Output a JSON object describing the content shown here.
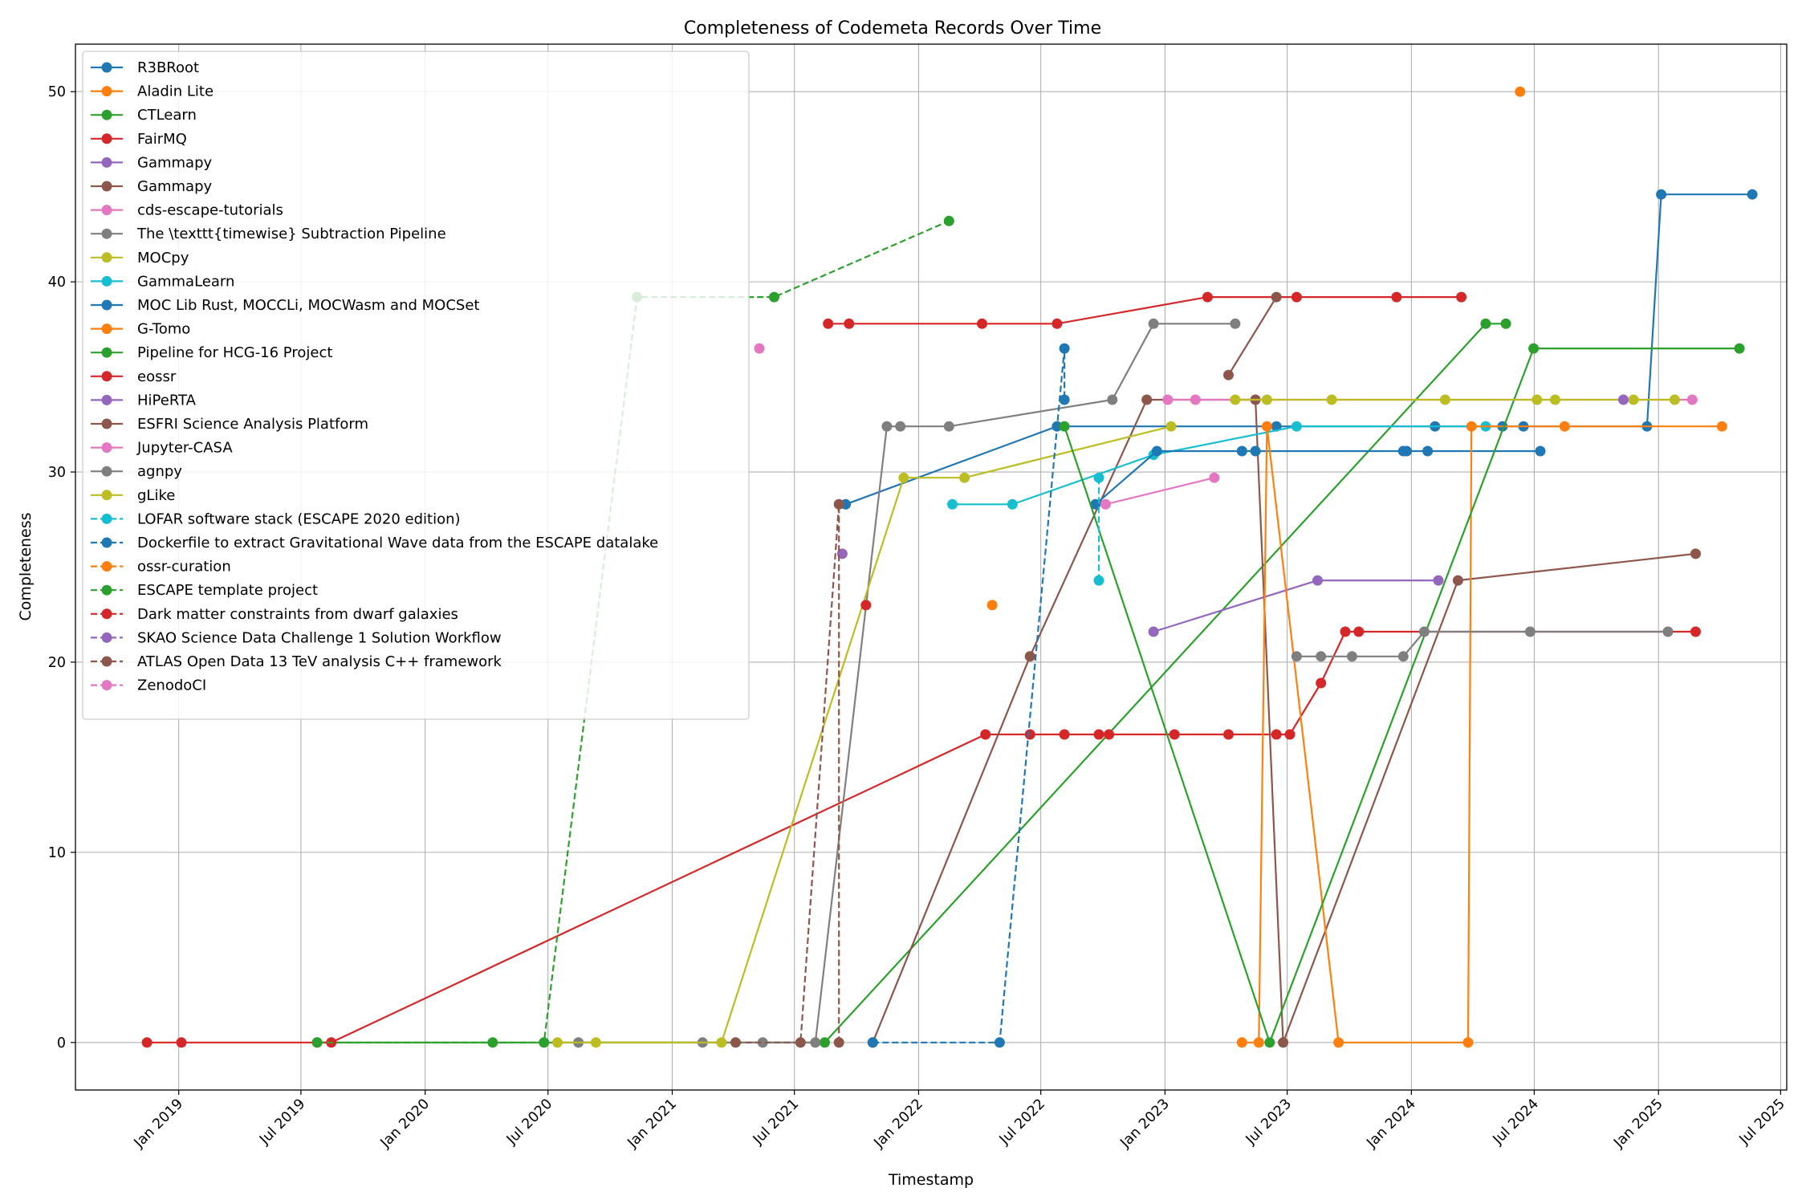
{
  "chart_data": {
    "type": "line",
    "title": "Completeness of Codemeta Records Over Time",
    "xlabel": "Timestamp",
    "ylabel": "Completeness",
    "x_axis": "date",
    "xlim": [
      "2018-08-01",
      "2025-07-10"
    ],
    "ylim": [
      -2.5,
      52.5
    ],
    "x_ticks": [
      {
        "value": "2019-01-01",
        "label": "Jan 2019"
      },
      {
        "value": "2019-07-01",
        "label": "Jul 2019"
      },
      {
        "value": "2020-01-01",
        "label": "Jan 2020"
      },
      {
        "value": "2020-07-01",
        "label": "Jul 2020"
      },
      {
        "value": "2021-01-01",
        "label": "Jan 2021"
      },
      {
        "value": "2021-07-01",
        "label": "Jul 2021"
      },
      {
        "value": "2022-01-01",
        "label": "Jan 2022"
      },
      {
        "value": "2022-07-01",
        "label": "Jul 2022"
      },
      {
        "value": "2023-01-01",
        "label": "Jan 2023"
      },
      {
        "value": "2023-07-01",
        "label": "Jul 2023"
      },
      {
        "value": "2024-01-01",
        "label": "Jan 2024"
      },
      {
        "value": "2024-07-01",
        "label": "Jul 2024"
      },
      {
        "value": "2025-01-01",
        "label": "Jan 2025"
      },
      {
        "value": "2025-07-01",
        "label": "Jul 2025"
      }
    ],
    "y_ticks": [
      {
        "value": 0,
        "label": "0"
      },
      {
        "value": 10,
        "label": "10"
      },
      {
        "value": 20,
        "label": "20"
      },
      {
        "value": 30,
        "label": "30"
      },
      {
        "value": 40,
        "label": "40"
      },
      {
        "value": 50,
        "label": "50"
      }
    ],
    "grid": true,
    "legend_position": "upper-left",
    "series": [
      {
        "name": "R3BRoot",
        "color": "#1f77b4",
        "dash": false,
        "points": [
          [
            "2021-09-15",
            28.3
          ],
          [
            "2022-07-25",
            32.4
          ],
          [
            "2023-06-15",
            32.4
          ],
          [
            "2024-02-05",
            32.4
          ],
          [
            "2024-05-15",
            32.4
          ],
          [
            "2024-06-15",
            32.4
          ],
          [
            "2024-12-15",
            32.4
          ],
          [
            "2025-01-05",
            44.6
          ],
          [
            "2025-05-20",
            44.6
          ]
        ]
      },
      {
        "name": "Aladin Lite",
        "color": "#ff7f0e",
        "dash": false,
        "points": [
          [
            "2024-06-10",
            50.0
          ]
        ]
      },
      {
        "name": "CTLearn",
        "color": "#2ca02c",
        "dash": false,
        "points": [
          [
            "2019-07-25",
            0
          ],
          [
            "2021-08-15",
            0
          ],
          [
            "2024-04-20",
            37.8
          ],
          [
            "2024-05-20",
            37.8
          ]
        ]
      },
      {
        "name": "FairMQ",
        "color": "#d62728",
        "dash": false,
        "points": [
          [
            "2018-11-15",
            0
          ],
          [
            "2019-01-05",
            0
          ],
          [
            "2019-08-15",
            0
          ],
          [
            "2022-04-10",
            16.2
          ],
          [
            "2022-06-15",
            16.2
          ],
          [
            "2022-08-05",
            16.2
          ],
          [
            "2022-09-25",
            16.2
          ],
          [
            "2022-10-10",
            16.2
          ],
          [
            "2023-01-15",
            16.2
          ],
          [
            "2023-04-05",
            16.2
          ],
          [
            "2023-06-15",
            16.2
          ],
          [
            "2023-07-05",
            16.2
          ],
          [
            "2023-08-20",
            18.9
          ],
          [
            "2023-09-25",
            21.6
          ],
          [
            "2023-10-15",
            21.6
          ],
          [
            "2025-02-25",
            21.6
          ]
        ]
      },
      {
        "name": "Gammapy",
        "color": "#9467bd",
        "dash": false,
        "points": [
          [
            "2022-12-15",
            21.6
          ],
          [
            "2023-08-15",
            24.3
          ],
          [
            "2024-02-10",
            24.3
          ]
        ]
      },
      {
        "name": "Gammapy",
        "color": "#8c564b",
        "dash": false,
        "points": [
          [
            "2021-10-25",
            0
          ],
          [
            "2022-06-15",
            20.3
          ],
          [
            "2022-12-05",
            33.8
          ],
          [
            "2023-05-15",
            33.8
          ],
          [
            "2023-06-25",
            0
          ],
          [
            "2024-03-10",
            24.3
          ],
          [
            "2025-02-25",
            25.7
          ]
        ]
      },
      {
        "name": "cds-escape-tutorials",
        "color": "#e377c2",
        "dash": false,
        "points": [
          [
            "2023-01-05",
            33.8
          ],
          [
            "2023-02-15",
            33.8
          ],
          [
            "2025-02-20",
            33.8
          ]
        ]
      },
      {
        "name": "The \\texttt{timewise} Subtraction Pipeline",
        "color": "#7f7f7f",
        "dash": false,
        "points": [
          [
            "2020-08-15",
            0
          ],
          [
            "2021-02-15",
            0
          ],
          [
            "2021-05-15",
            0
          ],
          [
            "2021-08-01",
            0
          ],
          [
            "2021-11-15",
            32.4
          ],
          [
            "2021-12-05",
            32.4
          ],
          [
            "2022-02-15",
            32.4
          ],
          [
            "2022-10-15",
            33.8
          ],
          [
            "2022-12-15",
            37.8
          ],
          [
            "2023-04-15",
            37.8
          ]
        ]
      },
      {
        "name": "MOCpy",
        "color": "#bcbd22",
        "dash": false,
        "points": [
          [
            "2020-07-15",
            0
          ],
          [
            "2020-09-10",
            0
          ],
          [
            "2021-03-15",
            0
          ],
          [
            "2021-12-10",
            29.7
          ],
          [
            "2022-03-10",
            29.7
          ],
          [
            "2023-01-10",
            32.4
          ]
        ]
      },
      {
        "name": "GammaLearn",
        "color": "#17becf",
        "dash": false,
        "points": [
          [
            "2022-02-20",
            28.3
          ],
          [
            "2022-05-20",
            28.3
          ],
          [
            "2022-12-15",
            30.9
          ],
          [
            "2023-07-15",
            32.4
          ],
          [
            "2024-04-20",
            32.4
          ]
        ]
      },
      {
        "name": "MOC Lib Rust, MOCCLi, MOCWasm and MOCSet",
        "color": "#1f77b4",
        "dash": false,
        "points": [
          [
            "2022-09-20",
            28.3
          ],
          [
            "2022-12-20",
            31.1
          ],
          [
            "2023-04-25",
            31.1
          ],
          [
            "2023-05-15",
            31.1
          ],
          [
            "2023-12-20",
            31.1
          ],
          [
            "2023-12-25",
            31.1
          ],
          [
            "2024-01-25",
            31.1
          ],
          [
            "2024-07-10",
            31.1
          ]
        ]
      },
      {
        "name": "G-Tomo",
        "color": "#ff7f0e",
        "dash": false,
        "points": [
          [
            "2023-04-25",
            0
          ],
          [
            "2023-05-20",
            0
          ],
          [
            "2023-06-01",
            32.4
          ],
          [
            "2023-09-15",
            0
          ],
          [
            "2024-03-25",
            0
          ],
          [
            "2024-03-30",
            32.4
          ],
          [
            "2024-08-15",
            32.4
          ],
          [
            "2025-04-05",
            32.4
          ]
        ]
      },
      {
        "name": "Pipeline for HCG-16 Project",
        "color": "#2ca02c",
        "dash": false,
        "points": [
          [
            "2022-08-05",
            32.4
          ],
          [
            "2023-06-05",
            0
          ],
          [
            "2024-06-30",
            36.5
          ],
          [
            "2025-05-01",
            36.5
          ]
        ]
      },
      {
        "name": "eossr",
        "color": "#d62728",
        "dash": false,
        "points": [
          [
            "2021-08-20",
            37.8
          ],
          [
            "2021-09-20",
            37.8
          ],
          [
            "2022-04-05",
            37.8
          ],
          [
            "2022-07-25",
            37.8
          ],
          [
            "2023-03-05",
            39.2
          ],
          [
            "2023-07-15",
            39.2
          ],
          [
            "2023-12-10",
            39.2
          ],
          [
            "2024-03-15",
            39.2
          ]
        ]
      },
      {
        "name": "HiPeRTA",
        "color": "#9467bd",
        "dash": false,
        "points": [
          [
            "2021-09-10",
            25.7
          ]
        ]
      },
      {
        "name": "ESFRI Science Analysis Platform",
        "color": "#8c564b",
        "dash": false,
        "points": [
          [
            "2023-04-05",
            35.1
          ],
          [
            "2023-06-15",
            39.2
          ]
        ]
      },
      {
        "name": "Jupyter-CASA",
        "color": "#e377c2",
        "dash": false,
        "points": [
          [
            "2022-10-05",
            28.3
          ],
          [
            "2023-03-15",
            29.7
          ]
        ]
      },
      {
        "name": "agnpy",
        "color": "#7f7f7f",
        "dash": false,
        "points": [
          [
            "2023-07-15",
            20.3
          ],
          [
            "2023-08-20",
            20.3
          ],
          [
            "2023-10-05",
            20.3
          ],
          [
            "2023-12-20",
            20.3
          ],
          [
            "2024-01-20",
            21.6
          ],
          [
            "2024-06-25",
            21.6
          ],
          [
            "2025-01-15",
            21.6
          ]
        ]
      },
      {
        "name": "gLike",
        "color": "#bcbd22",
        "dash": false,
        "points": [
          [
            "2023-04-15",
            33.8
          ],
          [
            "2023-06-01",
            33.8
          ],
          [
            "2023-09-05",
            33.8
          ],
          [
            "2024-02-20",
            33.8
          ],
          [
            "2024-07-05",
            33.8
          ],
          [
            "2024-08-01",
            33.8
          ],
          [
            "2024-11-25",
            33.8
          ],
          [
            "2025-01-25",
            33.8
          ]
        ]
      },
      {
        "name": "LOFAR software stack (ESCAPE 2020 edition)",
        "color": "#17becf",
        "dash": true,
        "points": [
          [
            "2022-09-25",
            29.7
          ],
          [
            "2022-09-25",
            24.3
          ]
        ]
      },
      {
        "name": "Dockerfile to extract Gravitational Wave data from the ESCAPE datalake",
        "color": "#1f77b4",
        "dash": true,
        "points": [
          [
            "2021-10-25",
            0
          ],
          [
            "2022-05-01",
            0
          ],
          [
            "2022-08-05",
            36.5
          ],
          [
            "2022-08-05",
            33.8
          ]
        ]
      },
      {
        "name": "ossr-curation",
        "color": "#ff7f0e",
        "dash": true,
        "points": [
          [
            "2022-04-20",
            23.0
          ]
        ]
      },
      {
        "name": "ESCAPE template project",
        "color": "#2ca02c",
        "dash": true,
        "points": [
          [
            "2019-07-25",
            0
          ],
          [
            "2020-04-10",
            0
          ],
          [
            "2020-06-25",
            0
          ],
          [
            "2020-11-10",
            39.2
          ],
          [
            "2021-06-01",
            39.2
          ],
          [
            "2022-02-15",
            43.2
          ]
        ]
      },
      {
        "name": "Dark matter constraints from dwarf galaxies",
        "color": "#d62728",
        "dash": true,
        "points": [
          [
            "2021-10-15",
            23.0
          ]
        ]
      },
      {
        "name": "SKAO Science Data Challenge 1 Solution Workflow",
        "color": "#9467bd",
        "dash": true,
        "points": [
          [
            "2024-11-10",
            33.8
          ]
        ]
      },
      {
        "name": "ATLAS Open Data 13 TeV analysis C++ framework",
        "color": "#8c564b",
        "dash": true,
        "points": [
          [
            "2021-04-05",
            0
          ],
          [
            "2021-07-10",
            0
          ],
          [
            "2021-09-05",
            28.3
          ],
          [
            "2021-09-05",
            0
          ]
        ]
      },
      {
        "name": "ZenodoCI",
        "color": "#e377c2",
        "dash": true,
        "points": [
          [
            "2021-05-10",
            36.5
          ]
        ]
      }
    ]
  }
}
